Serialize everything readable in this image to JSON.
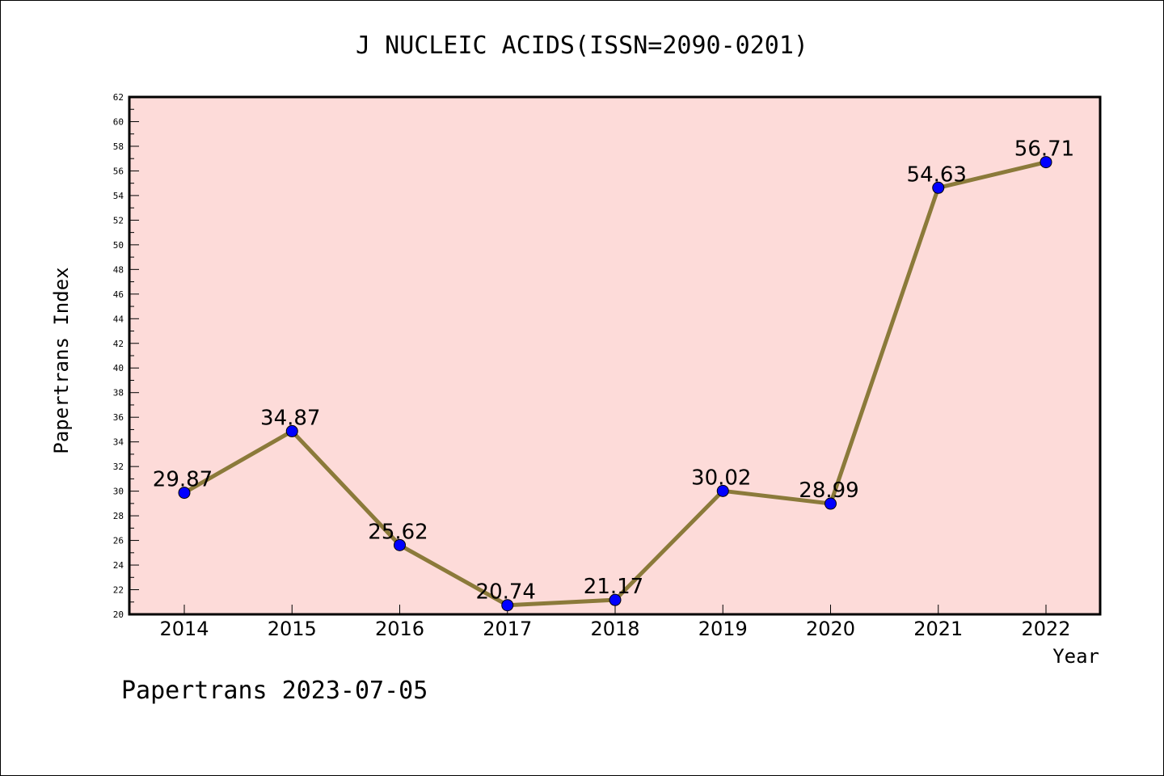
{
  "chart_data": {
    "type": "line",
    "title": "J NUCLEIC ACIDS(ISSN=2090-0201)",
    "xlabel": "Year",
    "ylabel": "Papertrans Index",
    "categories": [
      "2014",
      "2015",
      "2016",
      "2017",
      "2018",
      "2019",
      "2020",
      "2021",
      "2022"
    ],
    "values": [
      29.87,
      34.87,
      25.62,
      20.74,
      21.17,
      30.02,
      28.99,
      54.63,
      56.71
    ],
    "data_labels": [
      "29.87",
      "34.87",
      "25.62",
      "20.74",
      "21.17",
      "30.02",
      "28.99",
      "54.63",
      "56.71"
    ],
    "ylim": [
      20,
      62
    ],
    "ytick_step": 2,
    "grid": false,
    "colors": {
      "plot_background": "#fddbd9",
      "line": "#8b7a3a",
      "marker": "#0000ff"
    }
  },
  "footer": "Papertrans 2023-07-05"
}
